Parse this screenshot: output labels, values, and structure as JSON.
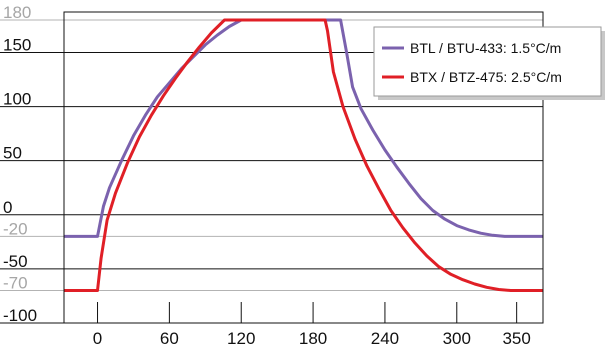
{
  "chart_data": {
    "type": "line",
    "title": "",
    "xlabel": "",
    "ylabel": "",
    "xlim": [
      -28,
      372
    ],
    "ylim": [
      -100,
      185
    ],
    "x_ticks": [
      0,
      60,
      120,
      180,
      240,
      300,
      350
    ],
    "x_tick_labels": [
      "0",
      "60",
      "120",
      "180",
      "240",
      "300",
      "350"
    ],
    "y_ticks": [
      {
        "value": 180,
        "label": "180",
        "style": "light"
      },
      {
        "value": 150,
        "label": "150",
        "style": "dark"
      },
      {
        "value": 100,
        "label": "100",
        "style": "dark"
      },
      {
        "value": 50,
        "label": "50",
        "style": "dark"
      },
      {
        "value": 0,
        "label": "0",
        "style": "dark"
      },
      {
        "value": -20,
        "label": "-20",
        "style": "light"
      },
      {
        "value": -50,
        "label": "-50",
        "style": "dark"
      },
      {
        "value": -70,
        "label": "-70",
        "style": "light"
      },
      {
        "value": -100,
        "label": "-100",
        "style": "dark"
      }
    ],
    "grid": "horizontal",
    "legend_position": "top-right",
    "series": [
      {
        "name": "BTL / BTU-433: 1.5°C/m",
        "color": "#7B62AE",
        "points": [
          [
            -28,
            -20
          ],
          [
            0,
            -20
          ],
          [
            5,
            8
          ],
          [
            10,
            25
          ],
          [
            20,
            50
          ],
          [
            30,
            73
          ],
          [
            40,
            92
          ],
          [
            50,
            109
          ],
          [
            60,
            122
          ],
          [
            70,
            135
          ],
          [
            80,
            146
          ],
          [
            90,
            157
          ],
          [
            100,
            166
          ],
          [
            110,
            174
          ],
          [
            120,
            180
          ],
          [
            203,
            180
          ],
          [
            208,
            150
          ],
          [
            213,
            118
          ],
          [
            220,
            98
          ],
          [
            230,
            78
          ],
          [
            240,
            60
          ],
          [
            250,
            44
          ],
          [
            260,
            29
          ],
          [
            270,
            15
          ],
          [
            280,
            4
          ],
          [
            290,
            -4
          ],
          [
            300,
            -10
          ],
          [
            310,
            -14
          ],
          [
            320,
            -17
          ],
          [
            330,
            -19
          ],
          [
            340,
            -20
          ],
          [
            372,
            -20
          ]
        ]
      },
      {
        "name": "BTX / BTZ-475: 2.5°C/m",
        "color": "#E01F26",
        "points": [
          [
            -28,
            -70
          ],
          [
            0,
            -70
          ],
          [
            3,
            -40
          ],
          [
            8,
            -5
          ],
          [
            15,
            20
          ],
          [
            25,
            48
          ],
          [
            35,
            72
          ],
          [
            45,
            92
          ],
          [
            55,
            110
          ],
          [
            65,
            126
          ],
          [
            75,
            141
          ],
          [
            85,
            155
          ],
          [
            95,
            168
          ],
          [
            106,
            180
          ],
          [
            190,
            180
          ],
          [
            192,
            170
          ],
          [
            197,
            132
          ],
          [
            205,
            100
          ],
          [
            215,
            70
          ],
          [
            225,
            45
          ],
          [
            235,
            24
          ],
          [
            245,
            4
          ],
          [
            255,
            -12
          ],
          [
            265,
            -26
          ],
          [
            275,
            -38
          ],
          [
            285,
            -48
          ],
          [
            295,
            -55
          ],
          [
            305,
            -60
          ],
          [
            315,
            -64
          ],
          [
            325,
            -67
          ],
          [
            335,
            -69
          ],
          [
            345,
            -70
          ],
          [
            372,
            -70
          ]
        ]
      }
    ]
  },
  "colors": {
    "grid_dark": "#111111",
    "grid_light": "#b3b3b3",
    "label_dark": "#111111",
    "label_light": "#a6a6a6",
    "legend_border": "#9a9a9a"
  }
}
